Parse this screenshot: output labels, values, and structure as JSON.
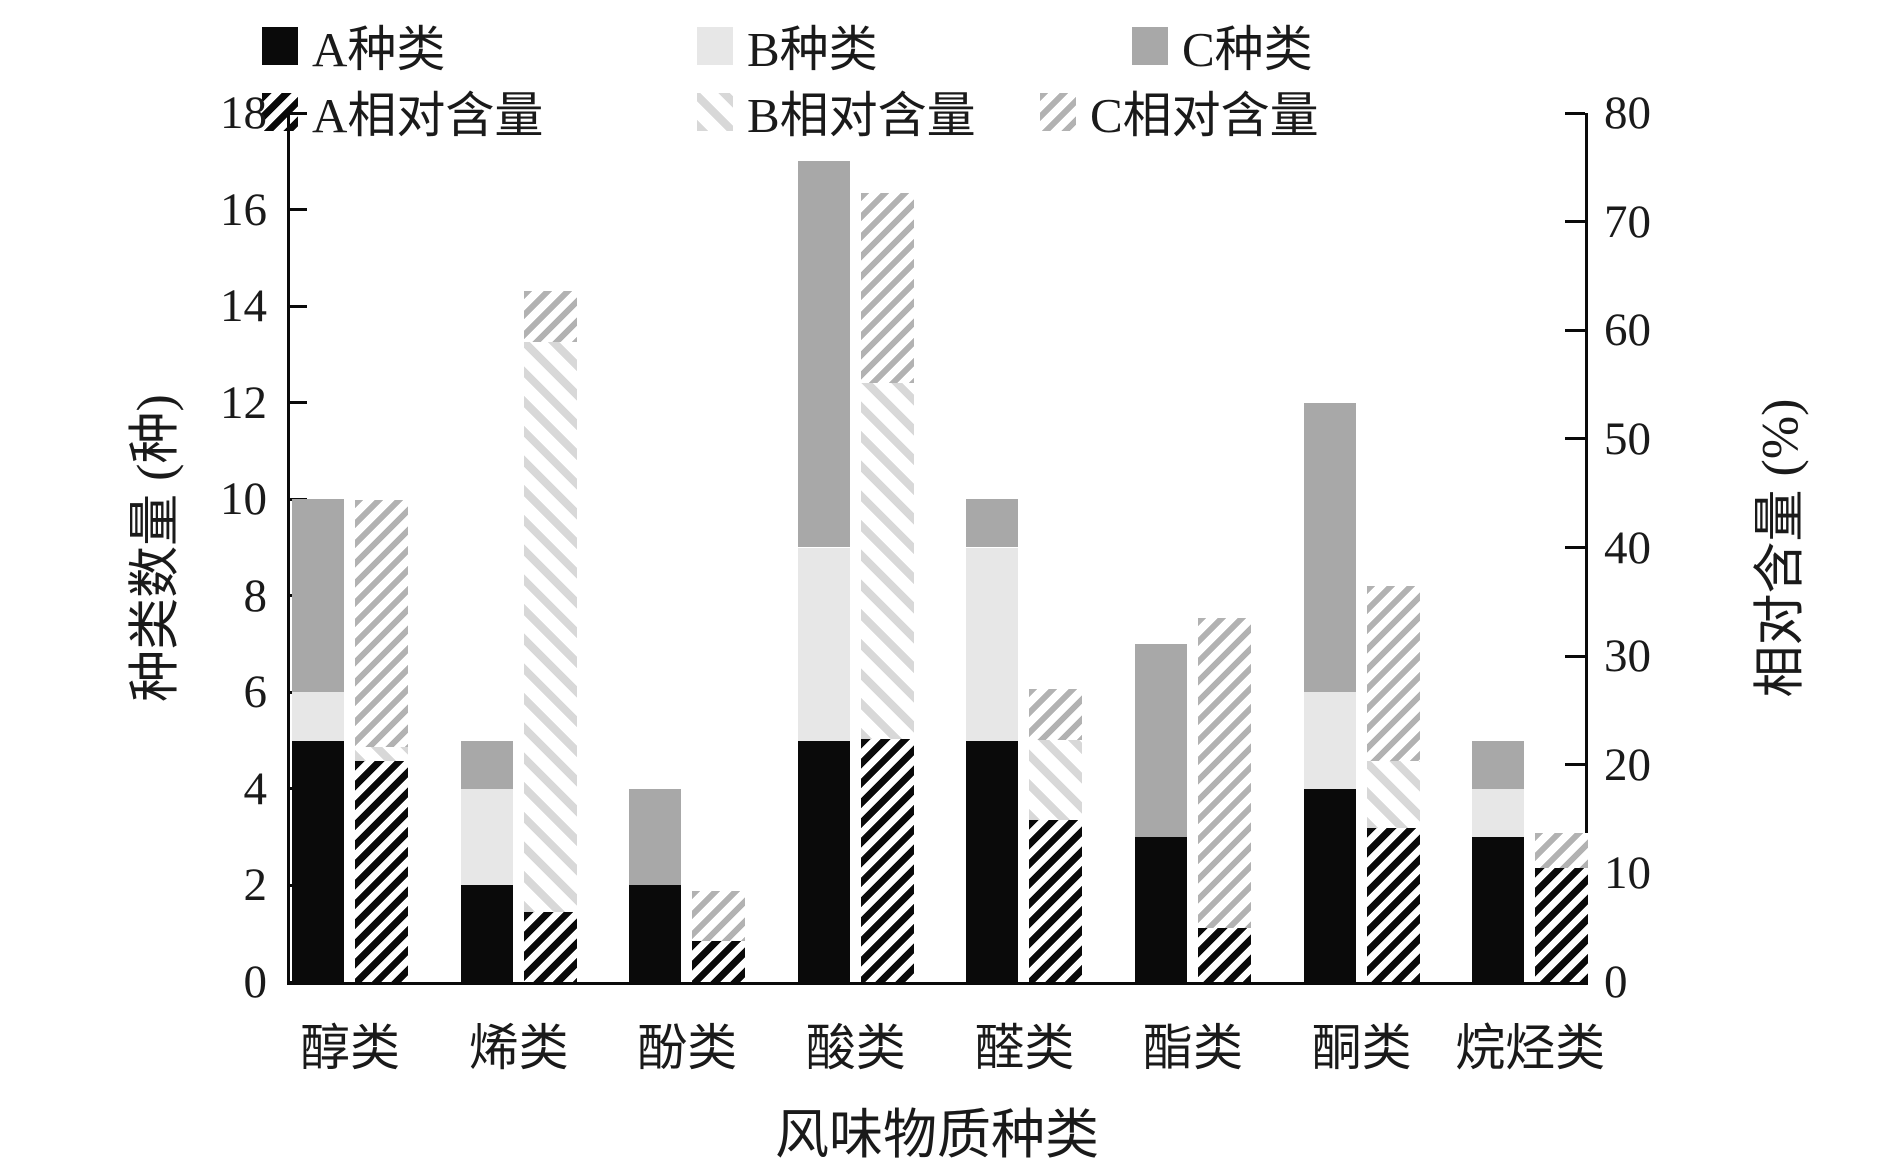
{
  "legend": {
    "items": [
      {
        "label": "A种类",
        "swatch": "solid-black"
      },
      {
        "label": "B种类",
        "swatch": "solid-lightgray"
      },
      {
        "label": "C种类",
        "swatch": "solid-gray"
      },
      {
        "label": "A相对含量",
        "swatch": "hatch-black"
      },
      {
        "label": "B相对含量",
        "swatch": "hatch-lightgray"
      },
      {
        "label": "C相对含量",
        "swatch": "hatch-gray"
      }
    ]
  },
  "left_axis": {
    "title": "种类数量 (种)",
    "min": 0,
    "max": 18,
    "step": 2,
    "tick_labels": [
      "0",
      "2",
      "4",
      "6",
      "8",
      "10",
      "12",
      "14",
      "16",
      "18"
    ]
  },
  "right_axis": {
    "title": "相对含量 (%)",
    "min": 0,
    "max": 80,
    "step": 10,
    "tick_labels": [
      "0",
      "10",
      "20",
      "30",
      "40",
      "50",
      "60",
      "70",
      "80"
    ]
  },
  "x_axis": {
    "title": "风味物质种类"
  },
  "colors": {
    "series_a": "#0a0a0a",
    "series_b": "#e7e7e7",
    "series_c": "#a8a8a8",
    "hatch_b_line": "#d8d8d8",
    "hatch_c_line": "#b2b2b2",
    "axis": "#0a0a0a"
  },
  "chart_data": {
    "type": "bar",
    "subtype": "stacked-dual-axis",
    "categories": [
      "醇类",
      "烯类",
      "酚类",
      "酸类",
      "醛类",
      "酯类",
      "酮类",
      "烷烃类"
    ],
    "series": [
      {
        "name": "A种类",
        "axis": "left",
        "style": "solid-black",
        "values": [
          5,
          2,
          2,
          5,
          5,
          3,
          4,
          3
        ]
      },
      {
        "name": "B种类",
        "axis": "left",
        "style": "solid-lightgray",
        "values": [
          1,
          2,
          0,
          4,
          4,
          0,
          2,
          1
        ]
      },
      {
        "name": "C种类",
        "axis": "left",
        "style": "solid-gray",
        "values": [
          4,
          1,
          2,
          8,
          1,
          4,
          6,
          1
        ]
      },
      {
        "name": "A相对含量",
        "axis": "right",
        "style": "hatch-black",
        "values": [
          20.3,
          6.4,
          3.8,
          22.4,
          14.9,
          5.0,
          14.2,
          10.5
        ]
      },
      {
        "name": "B相对含量",
        "axis": "right",
        "style": "hatch-lightgray",
        "values": [
          1.3,
          52.5,
          0,
          32.7,
          7.4,
          0,
          6.1,
          0
        ]
      },
      {
        "name": "C相对含量",
        "axis": "right",
        "style": "hatch-gray",
        "values": [
          22.8,
          4.7,
          4.6,
          17.5,
          4.7,
          28.5,
          16.2,
          3.2
        ]
      }
    ],
    "left_ylim": [
      0,
      18
    ],
    "right_ylim": [
      0,
      80
    ],
    "xlabel": "风味物质种类",
    "left_ylabel": "种类数量 (种)",
    "right_ylabel": "相对含量 (%)",
    "grid": false,
    "legend_position": "top"
  }
}
